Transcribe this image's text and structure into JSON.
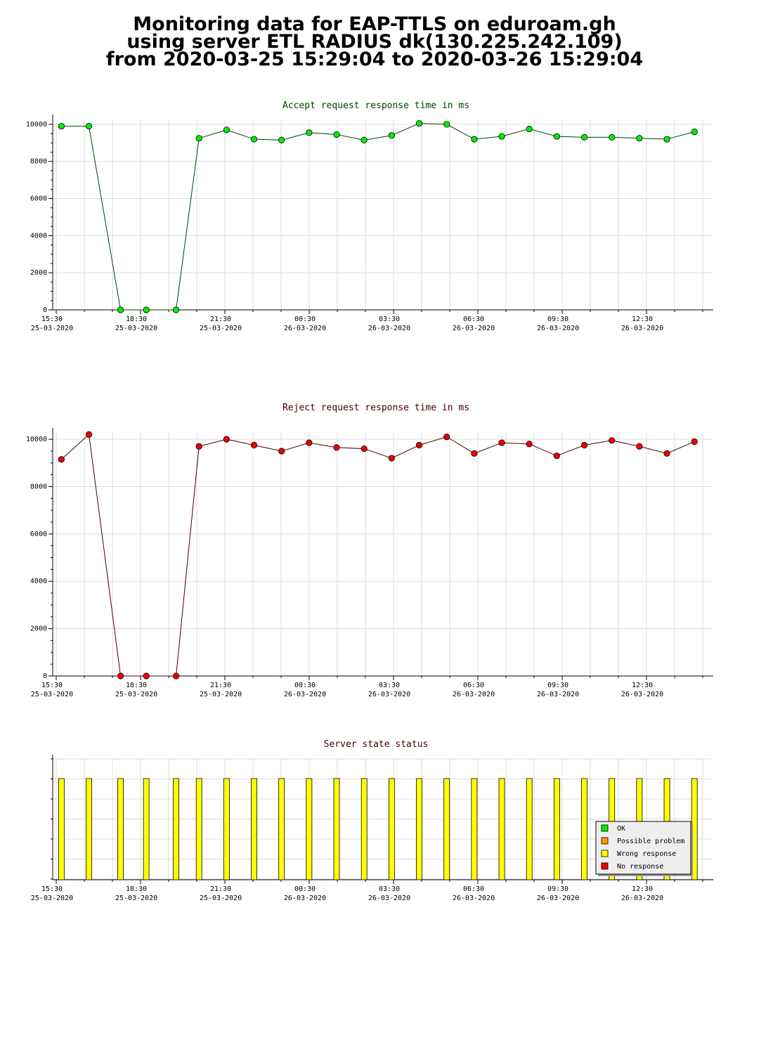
{
  "header": {
    "line1": "Monitoring data for EAP-TTLS on eduroam.gh",
    "line2": "using server ETL RADIUS dk(130.225.242.109)",
    "line3": "from 2020-03-25 15:29:04 to 2020-03-26 15:29:04"
  },
  "colors": {
    "ok": "#00ee00",
    "possible_problem": "#ff9900",
    "wrong_response": "#ffff00",
    "no_response": "#ee0000",
    "accept_line": "#004400",
    "reject_line": "#440000",
    "grid": "#dddddd"
  },
  "time_axis": {
    "ticks": [
      {
        "time": "15:30",
        "date": "25-03-2020"
      },
      {
        "time": "18:30",
        "date": "25-03-2020"
      },
      {
        "time": "21:30",
        "date": "25-03-2020"
      },
      {
        "time": "00:30",
        "date": "26-03-2020"
      },
      {
        "time": "03:30",
        "date": "26-03-2020"
      },
      {
        "time": "06:30",
        "date": "26-03-2020"
      },
      {
        "time": "09:30",
        "date": "26-03-2020"
      },
      {
        "time": "12:30",
        "date": "26-03-2020"
      }
    ]
  },
  "chart_data": [
    {
      "type": "line",
      "title": "Accept request response time in ms",
      "xlabel": "",
      "ylabel": "",
      "xlim": [
        "2020-03-25 15:29:04",
        "2020-03-26 15:29:04"
      ],
      "ylim": [
        0,
        10300
      ],
      "yticks": [
        0,
        2000,
        4000,
        6000,
        8000,
        10000
      ],
      "grid": true,
      "x": [
        "2020-03-25 15:48",
        "2020-03-25 16:48",
        "2020-03-25 17:57",
        "2020-03-25 18:53",
        "2020-03-25 19:58",
        "2020-03-25 20:48",
        "2020-03-25 21:48",
        "2020-03-25 22:48",
        "2020-03-25 23:48",
        "2020-03-26 00:48",
        "2020-03-26 01:48",
        "2020-03-26 02:48",
        "2020-03-26 03:48",
        "2020-03-26 04:48",
        "2020-03-26 05:48",
        "2020-03-26 06:48",
        "2020-03-26 07:48",
        "2020-03-26 08:48",
        "2020-03-26 09:48",
        "2020-03-26 10:48",
        "2020-03-26 11:48",
        "2020-03-26 12:48",
        "2020-03-26 13:48",
        "2020-03-26 14:48"
      ],
      "series": [
        {
          "values": [
            9900,
            9900,
            0,
            0,
            0,
            9250,
            9700,
            9200,
            9150,
            9550,
            9450,
            9150,
            9400,
            10050,
            10000,
            9200,
            9350,
            9750,
            9350,
            9300,
            9300,
            9250,
            9200,
            9600
          ]
        }
      ]
    },
    {
      "type": "line",
      "title": "Reject request response time in ms",
      "xlabel": "",
      "ylabel": "",
      "xlim": [
        "2020-03-25 15:29:04",
        "2020-03-26 15:29:04"
      ],
      "ylim": [
        0,
        10300
      ],
      "yticks": [
        0,
        2000,
        4000,
        6000,
        8000,
        10000
      ],
      "grid": true,
      "x": [
        "2020-03-25 15:48",
        "2020-03-25 16:48",
        "2020-03-25 17:57",
        "2020-03-25 18:53",
        "2020-03-25 19:58",
        "2020-03-25 20:48",
        "2020-03-25 21:48",
        "2020-03-25 22:48",
        "2020-03-25 23:48",
        "2020-03-26 00:48",
        "2020-03-26 01:48",
        "2020-03-26 02:48",
        "2020-03-26 03:48",
        "2020-03-26 04:48",
        "2020-03-26 05:48",
        "2020-03-26 06:48",
        "2020-03-26 07:48",
        "2020-03-26 08:48",
        "2020-03-26 09:48",
        "2020-03-26 10:48",
        "2020-03-26 11:48",
        "2020-03-26 12:48",
        "2020-03-26 13:48",
        "2020-03-26 14:48"
      ],
      "series": [
        {
          "values": [
            9150,
            10200,
            0,
            0,
            0,
            9700,
            10000,
            9750,
            9500,
            9850,
            9650,
            9600,
            9200,
            9750,
            10100,
            9400,
            9850,
            9800,
            9300,
            9750,
            9950,
            9700,
            9400,
            9900
          ]
        }
      ]
    },
    {
      "type": "bar",
      "title": "Server state status",
      "xlabel": "",
      "ylabel": "",
      "xlim": [
        "2020-03-25 15:29:04",
        "2020-03-26 15:29:04"
      ],
      "grid": true,
      "x": [
        "2020-03-25 15:48",
        "2020-03-25 16:48",
        "2020-03-25 17:57",
        "2020-03-25 18:53",
        "2020-03-25 19:58",
        "2020-03-25 20:48",
        "2020-03-25 21:48",
        "2020-03-25 22:48",
        "2020-03-25 23:48",
        "2020-03-26 00:48",
        "2020-03-26 01:48",
        "2020-03-26 02:48",
        "2020-03-26 03:48",
        "2020-03-26 04:48",
        "2020-03-26 05:48",
        "2020-03-26 06:48",
        "2020-03-26 07:48",
        "2020-03-26 08:48",
        "2020-03-26 09:48",
        "2020-03-26 10:48",
        "2020-03-26 11:48",
        "2020-03-26 12:48",
        "2020-03-26 13:48",
        "2020-03-26 14:48"
      ],
      "states": [
        "Wrong response",
        "Wrong response",
        "Wrong response",
        "Wrong response",
        "Wrong response",
        "Wrong response",
        "Wrong response",
        "Wrong response",
        "Wrong response",
        "Wrong response",
        "Wrong response",
        "Wrong response",
        "Wrong response",
        "Wrong response",
        "Wrong response",
        "Wrong response",
        "Wrong response",
        "Wrong response",
        "Wrong response",
        "Wrong response",
        "Wrong response",
        "Wrong response",
        "Wrong response",
        "Wrong response"
      ],
      "legend": {
        "placement": "bottom-right",
        "items": [
          {
            "label": "OK",
            "color": "#00ee00"
          },
          {
            "label": "Possible problem",
            "color": "#ff9900"
          },
          {
            "label": "Wrong response",
            "color": "#ffff00"
          },
          {
            "label": "No response",
            "color": "#ee0000"
          }
        ]
      }
    }
  ]
}
